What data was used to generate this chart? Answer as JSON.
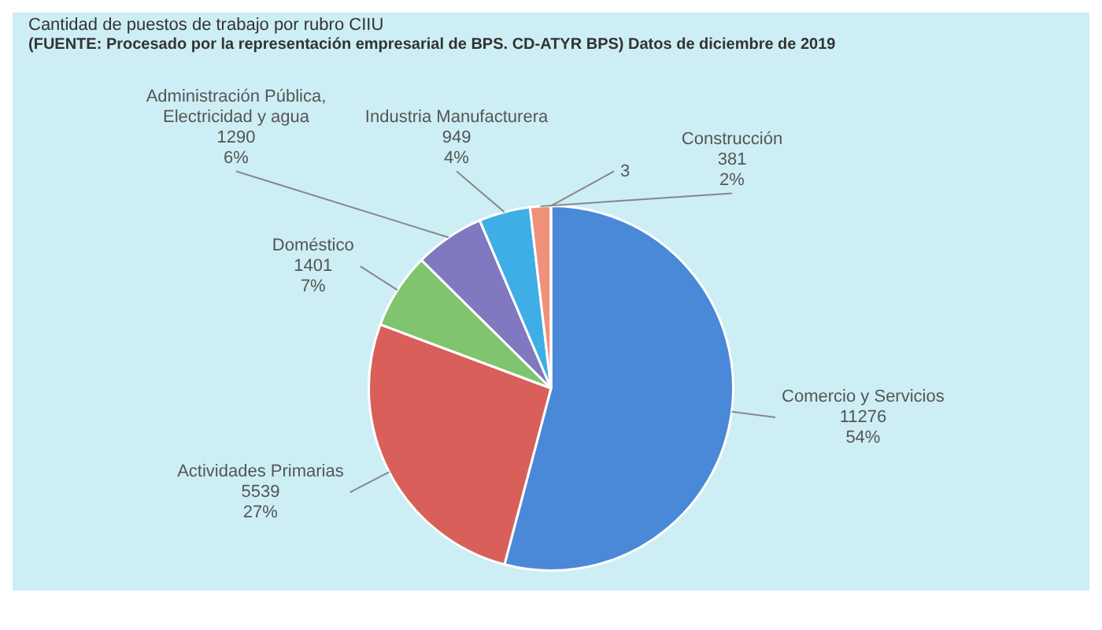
{
  "chart_data": {
    "type": "pie",
    "title": "Cantidad de puestos de trabajo por rubro CIIU",
    "annotations": [
      "(FUENTE: Procesado por la representación empresarial de BPS. CD-ATYR BPS) Datos de diciembre de 2019"
    ],
    "categories": [
      "Comercio y Servicios",
      "Actividades Primarias",
      "Doméstico",
      "Administración Pública, Electricidad y agua",
      "Industria Manufacturera",
      "Construcción",
      null
    ],
    "values": [
      11276,
      5539,
      1401,
      1290,
      949,
      381,
      3
    ],
    "value_labels": [
      "11276\n54%",
      "5539\n27%",
      "1401\n7%",
      "1290\n6%",
      "949\n4%",
      "381\n2%",
      "3"
    ],
    "colors": [
      "#4a88d8",
      "#d9605a",
      "#80c46e",
      "#8079bf",
      "#40aee6",
      "#f0917c",
      "#e4e4e4"
    ],
    "legend": false
  }
}
